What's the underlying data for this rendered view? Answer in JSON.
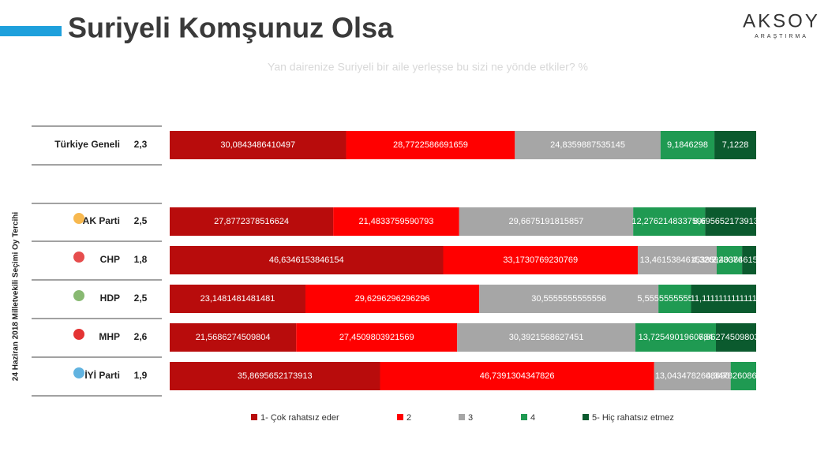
{
  "chart_data": {
    "type": "stacked-bar-horizontal",
    "title": "Suriyeli Komşunuz Olsa",
    "subtitle": "Yan dairenize Suriyeli bir aile yerleşse bu sizi ne yönde etkiler? %",
    "logo": "AKSOY",
    "logo_subtitle": "ARAŞTIRMA",
    "y_label": "24 Haziran 2018 Milletvekili Seçimi Oy Tercihi",
    "categories": [
      "Türkiye Geneli",
      "AK Parti",
      "CHP",
      "HDP",
      "MHP",
      "İYİ Parti"
    ],
    "scores": [
      "2,3",
      "2,5",
      "1,8",
      "2,5",
      "2,6",
      "1,9"
    ],
    "xlim": [
      0,
      100
    ],
    "series": [
      {
        "name": "1- Çok rahatsız eder",
        "color": "#b80c0c",
        "values": [
          30.0843486410497,
          27.8772378516624,
          46.6346153846154,
          23.1481481481481,
          21.5686274509804,
          35.8695652173913
        ],
        "value_labels": [
          "30,0843486410497",
          "27,8772378516624",
          "46,6346153846154",
          "23,1481481481481",
          "21,5686274509804",
          "35,8695652173913"
        ]
      },
      {
        "name": "2",
        "color": "#ff0000",
        "values": [
          28.7722586691659,
          21.4833759590793,
          33.1730769230769,
          29.6296296296296,
          27.4509803921569,
          46.7391304347826
        ],
        "value_labels": [
          "28,7722586691659",
          "21,4833759590793",
          "33,1730769230769",
          "29,6296296296296",
          "27,4509803921569",
          "46,7391304347826"
        ]
      },
      {
        "name": "3",
        "color": "#a6a6a6",
        "values": [
          24.8359887535145,
          29.6675191815857,
          13.4615384615385,
          30.5555555555556,
          30.3921568627451,
          13.0434782608696
        ],
        "value_labels": [
          "24,8359887535145",
          "29,6675191815857",
          "13,4615384615385",
          "30,5555555555556",
          "30,3921568627451",
          "13,0434782608696"
        ]
      },
      {
        "name": "4",
        "color": "#1f9a52",
        "values": [
          9.1846298,
          12.2762148337596,
          4.32692307692308,
          5.55555555555556,
          13.7254901960784,
          4.34782608695652
        ],
        "value_labels": [
          "9,1846298",
          "12,2762148337596",
          "4,32692307692308",
          "5,55555555555556",
          "13,7254901960784",
          "4,34782608695652"
        ]
      },
      {
        "name": "5- Hiç rahatsız etmez",
        "color": "#0b5a2e",
        "values": [
          7.1228,
          8.69565217391304,
          2.40384615384615,
          11.1111111111111,
          6.86274509803922,
          0
        ],
        "value_labels": [
          "7,1228",
          "8,69565217391304",
          "2,40384615384615",
          "11,1111111111111",
          "6,86274509803922",
          null
        ]
      }
    ]
  }
}
